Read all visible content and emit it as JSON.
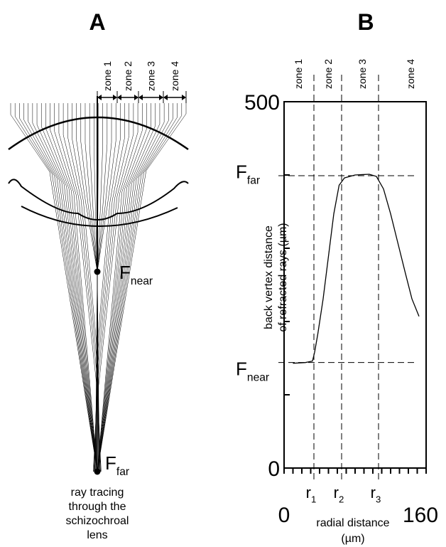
{
  "diagram": {
    "panel_label": "A",
    "zones": [
      "zone 1",
      "zone 2",
      "zone 3",
      "zone 4"
    ],
    "near_focus": {
      "main": "F",
      "sub": "near"
    },
    "far_focus": {
      "main": "F",
      "sub": "far"
    },
    "caption": [
      "ray tracing",
      "through the",
      "schizochroal",
      "lens"
    ]
  },
  "chart_data": {
    "type": "line",
    "panel_label": "B",
    "x_label": [
      "radial distance",
      "(µm)"
    ],
    "y_label": [
      "back vertex distance",
      "of refracted rays (µm)"
    ],
    "xlim": [
      0,
      160
    ],
    "xticks": [
      0,
      160
    ],
    "xminorticks": [
      10,
      20,
      30,
      40,
      50,
      60,
      70,
      80,
      90,
      100,
      110,
      120,
      130,
      140,
      150
    ],
    "ylim": [
      0,
      500
    ],
    "yticks": [
      0,
      500
    ],
    "yminorticks": [
      100,
      200,
      300,
      400
    ],
    "series": [
      {
        "color": "#000000",
        "x": [
          10,
          24,
          32,
          34.4,
          38,
          44,
          50,
          56,
          62,
          68,
          80,
          96,
          104,
          112,
          120,
          128,
          136,
          144,
          152
        ],
        "values": [
          143,
          144,
          146,
          158,
          183,
          231,
          289,
          347,
          386,
          396,
          400,
          401,
          398,
          381,
          347,
          308,
          269,
          231,
          207
        ]
      }
    ],
    "zones": [
      "zone 1",
      "zone 2",
      "zone 3",
      "zone 4"
    ],
    "boundaries": [
      {
        "value": 33.6,
        "main": "r",
        "sub": "1"
      },
      {
        "value": 64.8,
        "main": "r",
        "sub": "2"
      },
      {
        "value": 106.4,
        "main": "r",
        "sub": "3"
      }
    ],
    "levels": [
      {
        "value": 399,
        "main": "F",
        "sub": "far"
      },
      {
        "value": 144,
        "main": "F",
        "sub": "near"
      }
    ]
  }
}
